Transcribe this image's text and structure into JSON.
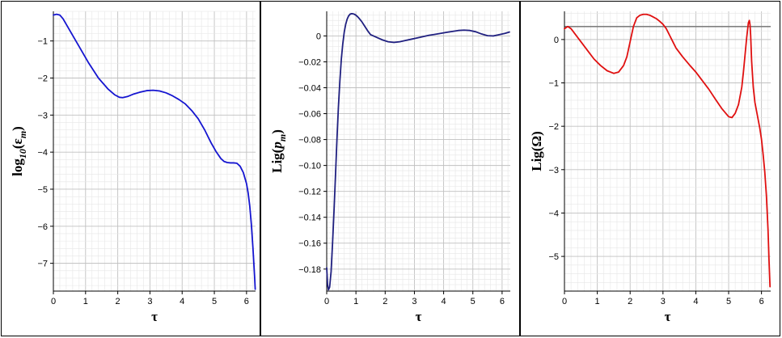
{
  "chart_data": [
    {
      "type": "line",
      "title": "",
      "xlabel": "τ",
      "ylabel": {
        "parts": [
          {
            "t": "log"
          },
          {
            "t": "10",
            "sub": true
          },
          {
            "t": "("
          },
          {
            "t": "ε"
          },
          {
            "t": "m",
            "sub": true
          },
          {
            "t": ")"
          }
        ]
      },
      "xlim": [
        0,
        6.28
      ],
      "ylim": [
        -7.75,
        -0.2
      ],
      "xticks": [
        0,
        1,
        2,
        3,
        4,
        5,
        6
      ],
      "yticks": [
        -1,
        -2,
        -3,
        -4,
        -5,
        -6,
        -7
      ],
      "ytick_labels": [
        "−1",
        "−2",
        "−3",
        "−4",
        "−5",
        "−6",
        "−7"
      ],
      "grid": true,
      "series": [
        {
          "color": "#1515d0",
          "x": [
            0.0,
            0.1,
            0.2,
            0.3,
            0.5,
            0.8,
            1.1,
            1.4,
            1.7,
            1.9,
            2.05,
            2.15,
            2.3,
            2.5,
            2.7,
            2.9,
            3.1,
            3.3,
            3.5,
            3.7,
            3.9,
            4.1,
            4.3,
            4.5,
            4.7,
            4.9,
            5.05,
            5.2,
            5.3,
            5.4,
            5.5,
            5.6,
            5.7,
            5.8,
            5.9,
            6.0,
            6.05,
            6.1,
            6.15,
            6.2,
            6.23,
            6.25,
            6.27
          ],
          "y": [
            -0.3,
            -0.28,
            -0.3,
            -0.4,
            -0.7,
            -1.15,
            -1.6,
            -2.0,
            -2.3,
            -2.45,
            -2.52,
            -2.53,
            -2.5,
            -2.43,
            -2.38,
            -2.34,
            -2.33,
            -2.35,
            -2.4,
            -2.48,
            -2.58,
            -2.7,
            -2.88,
            -3.1,
            -3.4,
            -3.75,
            -3.98,
            -4.17,
            -4.25,
            -4.28,
            -4.29,
            -4.29,
            -4.3,
            -4.38,
            -4.55,
            -4.85,
            -5.1,
            -5.45,
            -5.95,
            -6.6,
            -7.05,
            -7.35,
            -7.7
          ]
        }
      ]
    },
    {
      "type": "line",
      "title": "",
      "xlabel": "τ",
      "ylabel": {
        "parts": [
          {
            "t": "Lig("
          },
          {
            "t": "p",
            "it": true
          },
          {
            "t": "m",
            "sub": true
          },
          {
            "t": ")"
          }
        ]
      },
      "xlim": [
        0,
        6.28
      ],
      "ylim": [
        -0.197,
        0.019
      ],
      "xticks": [
        0,
        1,
        2,
        3,
        4,
        5,
        6
      ],
      "yticks": [
        0,
        -0.02,
        -0.04,
        -0.06,
        -0.08,
        -0.1,
        -0.12,
        -0.14,
        -0.16,
        -0.18
      ],
      "ytick_labels": [
        "0",
        "−0.02",
        "−0.04",
        "−0.06",
        "−0.08",
        "−0.10",
        "−0.12",
        "−0.14",
        "−0.16",
        "−0.18"
      ],
      "grid": true,
      "series": [
        {
          "color": "#202080",
          "x": [
            0.0,
            0.03,
            0.06,
            0.1,
            0.15,
            0.2,
            0.25,
            0.3,
            0.35,
            0.4,
            0.45,
            0.5,
            0.55,
            0.6,
            0.65,
            0.7,
            0.75,
            0.8,
            0.85,
            0.9,
            0.95,
            1.0,
            1.05,
            1.1,
            1.2,
            1.3,
            1.4,
            1.5,
            1.7,
            1.9,
            2.1,
            2.3,
            2.5,
            2.7,
            2.9,
            3.1,
            3.3,
            3.5,
            3.7,
            3.9,
            4.1,
            4.3,
            4.5,
            4.7,
            4.9,
            5.1,
            5.3,
            5.5,
            5.7,
            5.9,
            6.1,
            6.25
          ],
          "y": [
            -0.179,
            -0.192,
            -0.196,
            -0.194,
            -0.182,
            -0.16,
            -0.135,
            -0.108,
            -0.08,
            -0.055,
            -0.035,
            -0.018,
            -0.006,
            0.003,
            0.009,
            0.013,
            0.0155,
            0.0168,
            0.0172,
            0.0171,
            0.0167,
            0.016,
            0.015,
            0.0138,
            0.011,
            0.0075,
            0.004,
            0.001,
            -0.001,
            -0.003,
            -0.0045,
            -0.005,
            -0.0045,
            -0.0035,
            -0.0025,
            -0.0015,
            -0.0005,
            0.0005,
            0.0012,
            0.002,
            0.0028,
            0.0035,
            0.0042,
            0.0045,
            0.0042,
            0.0032,
            0.0015,
            0.0002,
            0.0,
            0.001,
            0.002,
            0.003
          ]
        }
      ]
    },
    {
      "type": "line",
      "title": "",
      "xlabel": "τ",
      "ylabel": {
        "parts": [
          {
            "t": "Lig(Ω)"
          }
        ]
      },
      "xlim": [
        0,
        6.28
      ],
      "ylim": [
        -5.8,
        0.65
      ],
      "xticks": [
        0,
        1,
        2,
        3,
        4,
        5,
        6
      ],
      "yticks": [
        0,
        -1,
        -2,
        -3,
        -4,
        -5
      ],
      "ytick_labels": [
        "0",
        "−1",
        "−2",
        "−3",
        "−4",
        "−5"
      ],
      "grid": true,
      "series": [
        {
          "color": "#e01010",
          "x": [
            0.0,
            0.1,
            0.2,
            0.3,
            0.5,
            0.7,
            0.9,
            1.1,
            1.3,
            1.5,
            1.65,
            1.8,
            1.9,
            2.0,
            2.1,
            2.2,
            2.3,
            2.4,
            2.5,
            2.6,
            2.7,
            2.8,
            2.9,
            3.0,
            3.1,
            3.2,
            3.3,
            3.4,
            3.6,
            3.8,
            4.0,
            4.2,
            4.4,
            4.6,
            4.8,
            5.0,
            5.1,
            5.2,
            5.3,
            5.4,
            5.45,
            5.5,
            5.55,
            5.6,
            5.63,
            5.65,
            5.67,
            5.7,
            5.75,
            5.8,
            5.85,
            5.9,
            5.95,
            6.0,
            6.05,
            6.1,
            6.15,
            6.2,
            6.23,
            6.26
          ],
          "y": [
            0.25,
            0.3,
            0.25,
            0.15,
            -0.05,
            -0.25,
            -0.45,
            -0.6,
            -0.72,
            -0.78,
            -0.75,
            -0.6,
            -0.4,
            -0.05,
            0.3,
            0.5,
            0.56,
            0.58,
            0.58,
            0.56,
            0.52,
            0.48,
            0.42,
            0.35,
            0.25,
            0.1,
            -0.05,
            -0.2,
            -0.4,
            -0.58,
            -0.75,
            -0.95,
            -1.15,
            -1.38,
            -1.6,
            -1.78,
            -1.8,
            -1.7,
            -1.5,
            -1.1,
            -0.75,
            -0.35,
            0.05,
            0.38,
            0.44,
            0.35,
            0.1,
            -0.5,
            -1.1,
            -1.45,
            -1.65,
            -1.85,
            -2.05,
            -2.3,
            -2.65,
            -3.05,
            -3.6,
            -4.4,
            -5.1,
            -5.7
          ]
        }
      ],
      "reference_lines": [
        {
          "y": 0.3,
          "color": "#808080"
        }
      ]
    }
  ]
}
